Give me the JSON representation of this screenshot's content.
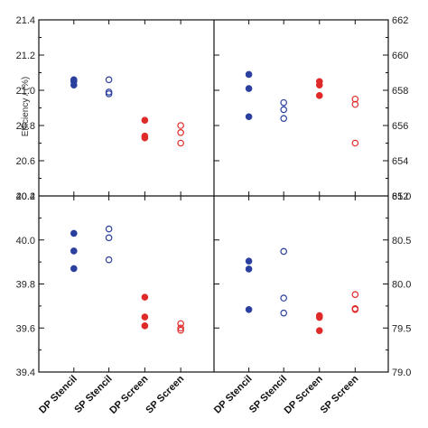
{
  "chart_data": [
    {
      "panel": "top-left",
      "type": "scatter",
      "categories": [
        "DP Stencil",
        "SP Stencil",
        "DP Screen",
        "SP Screen"
      ],
      "ylabel": "Efficiency / (%)",
      "ylim": [
        20.4,
        21.4
      ],
      "yticks": [
        "20.4",
        "20.6",
        "20.8",
        "21.0",
        "21.2",
        "21.4"
      ],
      "series": [
        {
          "category": "DP Stencil",
          "values": [
            21.06,
            21.05,
            21.03
          ],
          "marker": "filled",
          "color": "#2b3f9e"
        },
        {
          "category": "SP Stencil",
          "values": [
            21.06,
            20.99,
            20.98
          ],
          "marker": "open",
          "color": "#2b3f9e"
        },
        {
          "category": "DP Screen",
          "values": [
            20.83,
            20.74,
            20.73
          ],
          "marker": "filled",
          "color": "#e02a2a"
        },
        {
          "category": "SP Screen",
          "values": [
            20.8,
            20.76,
            20.7
          ],
          "marker": "open",
          "color": "#e02a2a"
        }
      ]
    },
    {
      "panel": "top-right",
      "type": "scatter",
      "categories": [
        "DP Stencil",
        "SP Stencil",
        "DP Screen",
        "SP Screen"
      ],
      "ylim": [
        652,
        662
      ],
      "yticks": [
        "652",
        "654",
        "656",
        "658",
        "660",
        "662"
      ],
      "series": [
        {
          "category": "DP Stencil",
          "values": [
            658.9,
            658.1,
            656.5
          ],
          "marker": "filled",
          "color": "#2b3f9e"
        },
        {
          "category": "SP Stencil",
          "values": [
            657.3,
            656.9,
            656.4
          ],
          "marker": "open",
          "color": "#2b3f9e"
        },
        {
          "category": "DP Screen",
          "values": [
            658.5,
            658.3,
            657.7
          ],
          "marker": "filled",
          "color": "#e02a2a"
        },
        {
          "category": "SP Screen",
          "values": [
            657.5,
            657.2,
            655.0
          ],
          "marker": "open",
          "color": "#e02a2a"
        }
      ]
    },
    {
      "panel": "bottom-left",
      "type": "scatter",
      "categories": [
        "DP Stencil",
        "SP Stencil",
        "DP Screen",
        "SP Screen"
      ],
      "ylim": [
        39.4,
        40.2
      ],
      "yticks": [
        "39.4",
        "39.6",
        "39.8",
        "40.0",
        "40.2"
      ],
      "series": [
        {
          "category": "DP Stencil",
          "values": [
            40.03,
            39.95,
            39.87
          ],
          "marker": "filled",
          "color": "#2b3f9e"
        },
        {
          "category": "SP Stencil",
          "values": [
            40.05,
            40.01,
            39.91
          ],
          "marker": "open",
          "color": "#2b3f9e"
        },
        {
          "category": "DP Screen",
          "values": [
            39.74,
            39.65,
            39.61
          ],
          "marker": "filled",
          "color": "#e02a2a"
        },
        {
          "category": "SP Screen",
          "values": [
            39.62,
            39.6,
            39.59
          ],
          "marker": "open",
          "color": "#e02a2a"
        }
      ]
    },
    {
      "panel": "bottom-right",
      "type": "scatter",
      "categories": [
        "DP Stencil",
        "SP Stencil",
        "DP Screen",
        "SP Screen"
      ],
      "ylim": [
        79.0,
        81.0
      ],
      "yticks": [
        "79.0",
        "79.5",
        "80.0",
        "80.5",
        "81.0"
      ],
      "series": [
        {
          "category": "DP Stencil",
          "values": [
            80.26,
            80.17,
            79.71
          ],
          "marker": "filled",
          "color": "#2b3f9e"
        },
        {
          "category": "SP Stencil",
          "values": [
            80.37,
            79.84,
            79.67
          ],
          "marker": "open",
          "color": "#2b3f9e"
        },
        {
          "category": "DP Screen",
          "values": [
            79.64,
            79.62,
            79.47
          ],
          "marker": "filled",
          "color": "#e02a2a"
        },
        {
          "category": "SP Screen",
          "values": [
            79.88,
            79.72,
            79.71
          ],
          "marker": "open",
          "color": "#e02a2a"
        }
      ]
    }
  ]
}
